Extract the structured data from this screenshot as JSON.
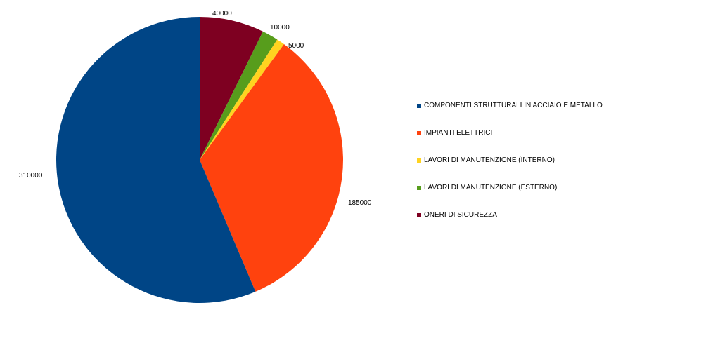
{
  "chart_data": {
    "type": "pie",
    "categories": [
      "ONERI DI SICUREZZA",
      "LAVORI DI MANUTENZIONE (ESTERNO)",
      "LAVORI DI MANUTENZIONE (INTERNO)",
      "IMPIANTI ELETTRICI",
      "COMPONENTI STRUTTURALI IN ACCIAIO E METALLO"
    ],
    "values": [
      40000,
      10000,
      5000,
      185000,
      310000
    ],
    "data_labels": [
      "40000",
      "10000",
      "5000",
      "185000",
      "310000"
    ],
    "colors": [
      "#7e0021",
      "#579d1c",
      "#ffd320",
      "#ff420e",
      "#004586"
    ],
    "start_angle": "top",
    "direction": "clockwise",
    "legend_position": "right",
    "legend": [
      {
        "label": "COMPONENTI STRUTTURALI IN ACCIAIO E METALLO",
        "color": "#004586"
      },
      {
        "label": "IMPIANTI ELETTRICI",
        "color": "#ff420e"
      },
      {
        "label": "LAVORI DI MANUTENZIONE (INTERNO)",
        "color": "#ffd320"
      },
      {
        "label": "LAVORI DI MANUTENZIONE (ESTERNO)",
        "color": "#579d1c"
      },
      {
        "label": "ONERI DI SICUREZZA",
        "color": "#7e0021"
      }
    ]
  }
}
